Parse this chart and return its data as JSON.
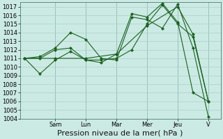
{
  "background_color": "#cceae4",
  "grid_color": "#aacfc8",
  "line_color": "#1a6020",
  "ylim": [
    1004,
    1017.5
  ],
  "yticks": [
    1004,
    1005,
    1006,
    1007,
    1008,
    1009,
    1010,
    1011,
    1012,
    1013,
    1014,
    1015,
    1016,
    1017
  ],
  "xlabel": "Pression niveau de la mer( hPa )",
  "xlabel_fontsize": 8,
  "tick_fontsize": 6,
  "day_labels": [
    "Sam",
    "Lun",
    "Mar",
    "Mer",
    "Jeu",
    "V"
  ],
  "day_positions": [
    2,
    4,
    6,
    8,
    10,
    12
  ],
  "xlim": [
    -0.3,
    12.8
  ],
  "lines": [
    {
      "x": [
        0,
        1,
        2,
        3,
        4,
        5,
        6,
        7,
        8,
        9,
        10,
        11,
        12
      ],
      "y": [
        1011,
        1009.2,
        1010.8,
        1011.8,
        1010.8,
        1010.8,
        1011.0,
        1012.0,
        1015.0,
        1017.2,
        1015.0,
        1013.5,
        1006.0
      ]
    },
    {
      "x": [
        0,
        1,
        2,
        3,
        4,
        5,
        6,
        7,
        8,
        9,
        10,
        11,
        12
      ],
      "y": [
        1011,
        1011.2,
        1012.2,
        1014.0,
        1013.2,
        1011.0,
        1010.8,
        1015.8,
        1015.5,
        1014.5,
        1017.3,
        1012.2,
        1004.2
      ]
    },
    {
      "x": [
        0,
        1,
        2,
        3,
        4,
        5,
        6,
        7,
        8,
        9,
        10,
        11,
        12
      ],
      "y": [
        1011,
        1011.0,
        1012.0,
        1012.2,
        1010.8,
        1010.5,
        1011.5,
        1016.2,
        1015.8,
        1017.4,
        1015.2,
        1007.0,
        1006.0
      ]
    },
    {
      "x": [
        0,
        2,
        4,
        6,
        8,
        10,
        11,
        12
      ],
      "y": [
        1011,
        1011.0,
        1011.0,
        1011.5,
        1014.8,
        1017.0,
        1013.8,
        1006.0
      ]
    }
  ]
}
